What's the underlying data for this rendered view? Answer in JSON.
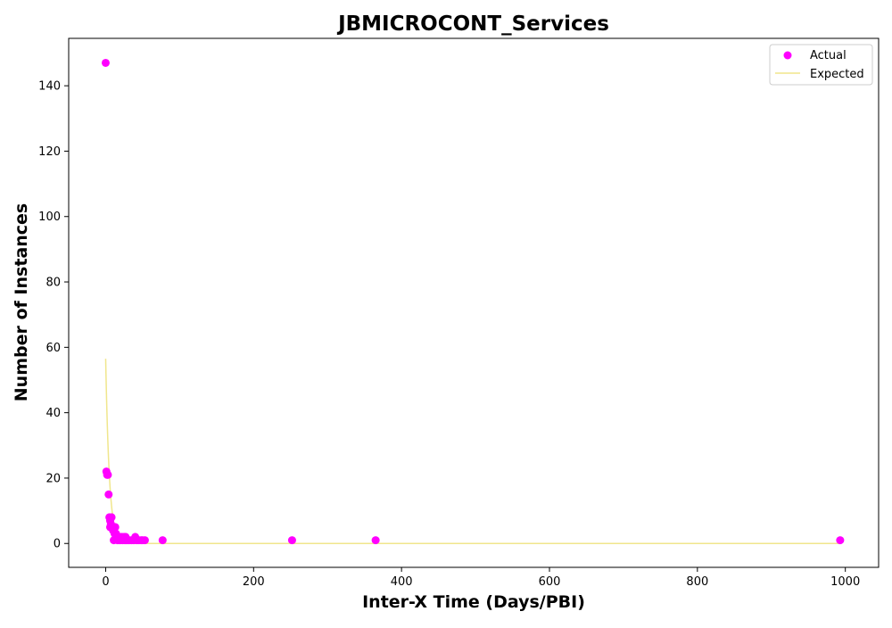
{
  "chart_data": {
    "type": "scatter",
    "title": "JBMICROCONT_Services",
    "xlabel": "Inter-X Time (Days/PBI)",
    "ylabel": "Number of Instances",
    "xlim": [
      -50,
      1045
    ],
    "ylim": [
      -7.3,
      154.5
    ],
    "xticks": [
      0,
      200,
      400,
      600,
      800,
      1000
    ],
    "yticks": [
      0,
      20,
      40,
      60,
      80,
      100,
      120,
      140
    ],
    "grid": false,
    "legend_position": "top-right",
    "series": [
      {
        "name": "Actual",
        "kind": "scatter",
        "color": "#ff00ff",
        "points": [
          [
            0,
            147
          ],
          [
            1,
            22
          ],
          [
            2,
            21
          ],
          [
            3,
            21
          ],
          [
            4,
            15
          ],
          [
            5,
            8
          ],
          [
            6,
            7
          ],
          [
            7,
            6
          ],
          [
            8,
            8
          ],
          [
            6,
            5
          ],
          [
            9,
            5
          ],
          [
            10,
            4
          ],
          [
            11,
            1
          ],
          [
            12,
            3
          ],
          [
            13,
            5
          ],
          [
            14,
            3
          ],
          [
            15,
            2
          ],
          [
            16,
            1
          ],
          [
            17,
            2
          ],
          [
            18,
            1
          ],
          [
            19,
            2
          ],
          [
            20,
            1
          ],
          [
            22,
            2
          ],
          [
            23,
            1
          ],
          [
            25,
            2
          ],
          [
            26,
            1
          ],
          [
            27,
            2
          ],
          [
            28,
            1
          ],
          [
            30,
            1
          ],
          [
            32,
            1
          ],
          [
            35,
            1
          ],
          [
            38,
            1
          ],
          [
            40,
            2
          ],
          [
            42,
            1
          ],
          [
            45,
            1
          ],
          [
            48,
            1
          ],
          [
            50,
            1
          ],
          [
            53,
            1
          ],
          [
            77,
            1
          ],
          [
            252,
            1
          ],
          [
            365,
            1
          ],
          [
            993,
            1
          ]
        ]
      },
      {
        "name": "Expected",
        "kind": "line",
        "color": "#f0e68c",
        "amplitude": 56.5,
        "decay_rate": 0.2,
        "x_start": 0,
        "x_end": 993
      }
    ]
  }
}
